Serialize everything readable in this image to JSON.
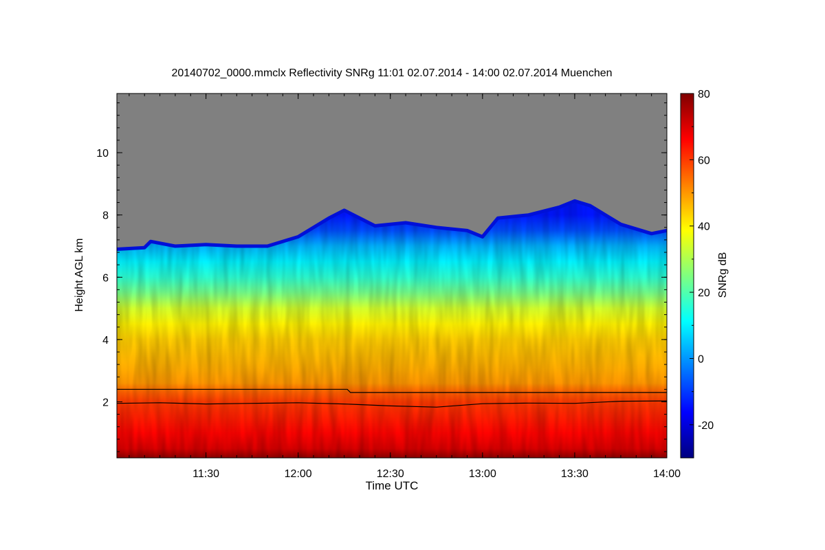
{
  "chart_data": {
    "type": "heatmap",
    "title": "20140702_0000.mmclx Reflectivity SNRg   11:01 02.07.2014 - 14:00 02.07.2014 Muenchen",
    "xlabel": "Time UTC",
    "ylabel": "Height AGL km",
    "colorbar_label": "SNRg dB",
    "x_range": [
      "11:01",
      "14:00"
    ],
    "x_ticks": [
      "11:30",
      "12:00",
      "12:30",
      "13:00",
      "13:30",
      "14:00"
    ],
    "y_range": [
      0.2,
      11.9
    ],
    "y_ticks": [
      2,
      4,
      6,
      8,
      10
    ],
    "colorbar_range": [
      -30,
      80
    ],
    "colorbar_ticks": [
      -20,
      0,
      20,
      40,
      60,
      80
    ],
    "colormap": [
      "#00007f",
      "#0000ff",
      "#00ffff",
      "#ffff00",
      "#ff7f00",
      "#ff0000",
      "#7f0000"
    ],
    "no_data_color": "#808080",
    "cloud_top_km": [
      [
        "11:01",
        6.9
      ],
      [
        "11:10",
        6.95
      ],
      [
        "11:12",
        7.15
      ],
      [
        "11:20",
        7.0
      ],
      [
        "11:30",
        7.05
      ],
      [
        "11:40",
        7.0
      ],
      [
        "11:50",
        7.0
      ],
      [
        "12:00",
        7.3
      ],
      [
        "12:10",
        7.9
      ],
      [
        "12:15",
        8.15
      ],
      [
        "12:25",
        7.65
      ],
      [
        "12:35",
        7.75
      ],
      [
        "12:45",
        7.6
      ],
      [
        "12:55",
        7.5
      ],
      [
        "13:00",
        7.3
      ],
      [
        "13:05",
        7.9
      ],
      [
        "13:15",
        8.0
      ],
      [
        "13:25",
        8.25
      ],
      [
        "13:30",
        8.45
      ],
      [
        "13:35",
        8.3
      ],
      [
        "13:45",
        7.7
      ],
      [
        "13:55",
        7.4
      ],
      [
        "14:00",
        7.5
      ]
    ],
    "snr_profile_db": [
      [
        0.2,
        78
      ],
      [
        0.5,
        70
      ],
      [
        1.0,
        66
      ],
      [
        1.5,
        63
      ],
      [
        2.0,
        60
      ],
      [
        2.3,
        56
      ],
      [
        2.6,
        50
      ],
      [
        3.0,
        48
      ],
      [
        3.5,
        46
      ],
      [
        4.0,
        44
      ],
      [
        4.5,
        40
      ],
      [
        5.0,
        34
      ],
      [
        5.5,
        24
      ],
      [
        6.0,
        16
      ],
      [
        6.5,
        10
      ],
      [
        7.0,
        3
      ],
      [
        7.5,
        -8
      ],
      [
        8.0,
        -14
      ]
    ],
    "upper_line_km": [
      [
        "11:01",
        2.4
      ],
      [
        "12:16",
        2.4
      ],
      [
        "12:17",
        2.3
      ],
      [
        "14:00",
        2.3
      ]
    ],
    "lower_line_km": [
      [
        "11:01",
        1.95
      ],
      [
        "11:15",
        1.97
      ],
      [
        "11:30",
        1.93
      ],
      [
        "11:45",
        1.95
      ],
      [
        "12:00",
        1.97
      ],
      [
        "12:15",
        1.93
      ],
      [
        "12:30",
        1.87
      ],
      [
        "12:45",
        1.83
      ],
      [
        "13:00",
        1.94
      ],
      [
        "13:15",
        1.96
      ],
      [
        "13:30",
        1.95
      ],
      [
        "13:45",
        2.02
      ],
      [
        "14:00",
        2.03
      ]
    ]
  }
}
